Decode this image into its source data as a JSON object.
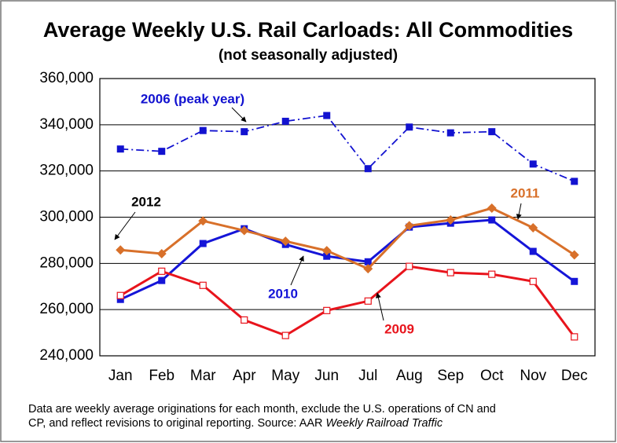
{
  "chart_data": {
    "type": "line",
    "title": "Average Weekly U.S. Rail Carloads: All Commodities",
    "subtitle": "(not seasonally adjusted)",
    "categories": [
      "Jan",
      "Feb",
      "Mar",
      "Apr",
      "May",
      "Jun",
      "Jul",
      "Aug",
      "Sep",
      "Oct",
      "Nov",
      "Dec"
    ],
    "series": [
      {
        "name": "2006 (peak year)",
        "color": "#1212d0",
        "marker": "square",
        "line_style": "dashdot",
        "values": [
          329500,
          328500,
          337500,
          337000,
          341500,
          344000,
          321000,
          339000,
          336500,
          337000,
          323000,
          315500
        ]
      },
      {
        "name": "2010",
        "color": "#1515d8",
        "marker": "square",
        "line_style": "solid",
        "values": [
          264400,
          272600,
          288600,
          295000,
          288200,
          283100,
          280700,
          295700,
          297400,
          298800,
          285200,
          272200
        ]
      },
      {
        "name": "2011",
        "color": "#d8702a",
        "marker": "diamond",
        "line_style": "solid",
        "values": [
          285800,
          284200,
          298400,
          294200,
          289600,
          285500,
          277700,
          296300,
          298800,
          303900,
          295400,
          283700
        ]
      },
      {
        "name": "2009",
        "color": "#e8141c",
        "marker": "open-square",
        "line_style": "solid",
        "values": [
          266100,
          276600,
          270500,
          255500,
          248800,
          259600,
          263700,
          278700,
          276000,
          275300,
          272200,
          248200
        ]
      }
    ],
    "annotations": [
      "2012"
    ],
    "ylim": [
      240000,
      360000
    ],
    "yticks": [
      {
        "value": 240000,
        "label": "240,000"
      },
      {
        "value": 260000,
        "label": "260,000"
      },
      {
        "value": 280000,
        "label": "280,000"
      },
      {
        "value": 300000,
        "label": "300,000"
      },
      {
        "value": 320000,
        "label": "320,000"
      },
      {
        "value": 340000,
        "label": "340,000"
      },
      {
        "value": 360000,
        "label": "360,000"
      }
    ],
    "grid": true,
    "note": "Data are weekly average originations for each month, exclude the U.S. operations of CN and",
    "note_line2": "CP, and reflect revisions to original reporting.  Source: AAR ",
    "note_italic": "Weekly Railroad Traffic"
  }
}
